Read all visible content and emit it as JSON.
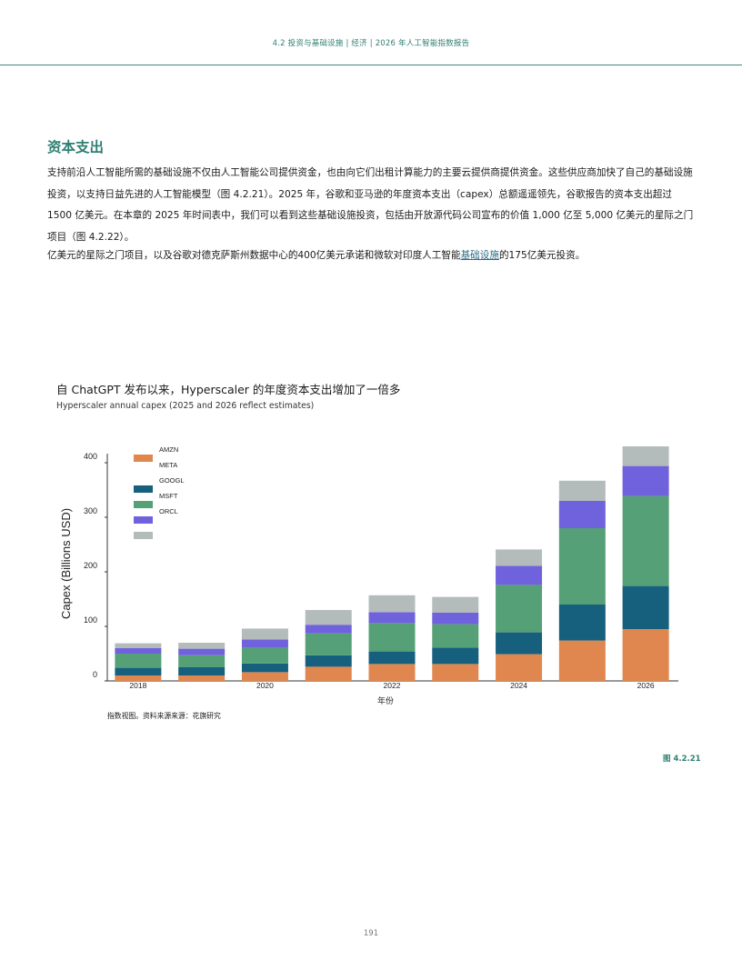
{
  "header": {
    "title": "4.2  投资与基础设施 | 经济 | 2026 年人工智能指数报告"
  },
  "section": {
    "heading": "资本支出"
  },
  "body": {
    "paragraph1": "支持前沿人工智能所需的基础设施不仅由人工智能公司提供资金，也由向它们出租计算能力的主要云提供商提供资金。这些供应商加快了自己的基础设施投资，以支持日益先进的人工智能模型（图 4.2.21）。2025 年，谷歌和亚马逊的年度资本支出（capex）总额遥遥领先，谷歌报告的资本支出超过 1500 亿美元。在本章的 2025 年时间表中，我们可以看到这些基础设施投资，包括由开放源代码公司宣布的价值 1,000 亿至 5,000 亿美元的星际之门项目（图 4.2.22）。",
    "paragraph2_before": "亿美元的星际之门项目，以及谷歌对德克萨斯州数据中心的400亿美元承诺和微软对印度人工智能",
    "paragraph2_link": "基础设施",
    "paragraph2_after": "的175亿美元投资。"
  },
  "figure": {
    "title": "自 ChatGPT 发布以来，Hyperscaler 的年度资本支出增加了一倍多",
    "subtitle": "Hyperscaler annual capex (2025 and 2026 reflect estimates)",
    "source": "指数视图。资料来源来源：花旗研究",
    "ref": "图 4.2.21"
  },
  "chart_data": {
    "type": "bar",
    "stacked": true,
    "xlabel": "年份",
    "ylabel": "Capex (Billions USD)",
    "ylim": [
      0,
      450
    ],
    "yticks": [
      0,
      100,
      200,
      300,
      400
    ],
    "grid": false,
    "legend_position": "top-left",
    "categories": [
      "2018",
      "2019",
      "2020",
      "2021",
      "2022",
      "2023",
      "2024",
      "2025",
      "2026"
    ],
    "x_tick_labels": [
      "2018",
      "",
      "2020",
      "",
      "2022",
      "",
      "2024",
      "",
      "2026"
    ],
    "series": [
      {
        "name": "AMZN",
        "color": "#e0874f",
        "values": [
          10,
          10,
          16,
          26,
          31,
          31,
          49,
          74,
          95
        ]
      },
      {
        "name": "META",
        "color": "#ffffff",
        "values": [
          0,
          0,
          0,
          0,
          0,
          0,
          0,
          0,
          0
        ]
      },
      {
        "name": "GOOGL",
        "color": "#16607e",
        "values": [
          14,
          15,
          16,
          21,
          23,
          30,
          40,
          66,
          79
        ]
      },
      {
        "name": "MSFT",
        "color": "#55a077",
        "values": [
          26,
          22,
          29,
          40,
          52,
          43,
          87,
          140,
          165
        ]
      },
      {
        "name": "ORCL",
        "color": "#7062dd",
        "values": [
          10,
          12,
          15,
          16,
          20,
          21,
          35,
          50,
          55
        ]
      },
      {
        "name": "",
        "color": "#b4bcbb",
        "values": [
          9,
          11,
          20,
          27,
          31,
          29,
          30,
          37,
          36
        ]
      }
    ]
  },
  "page": {
    "number": "191"
  }
}
